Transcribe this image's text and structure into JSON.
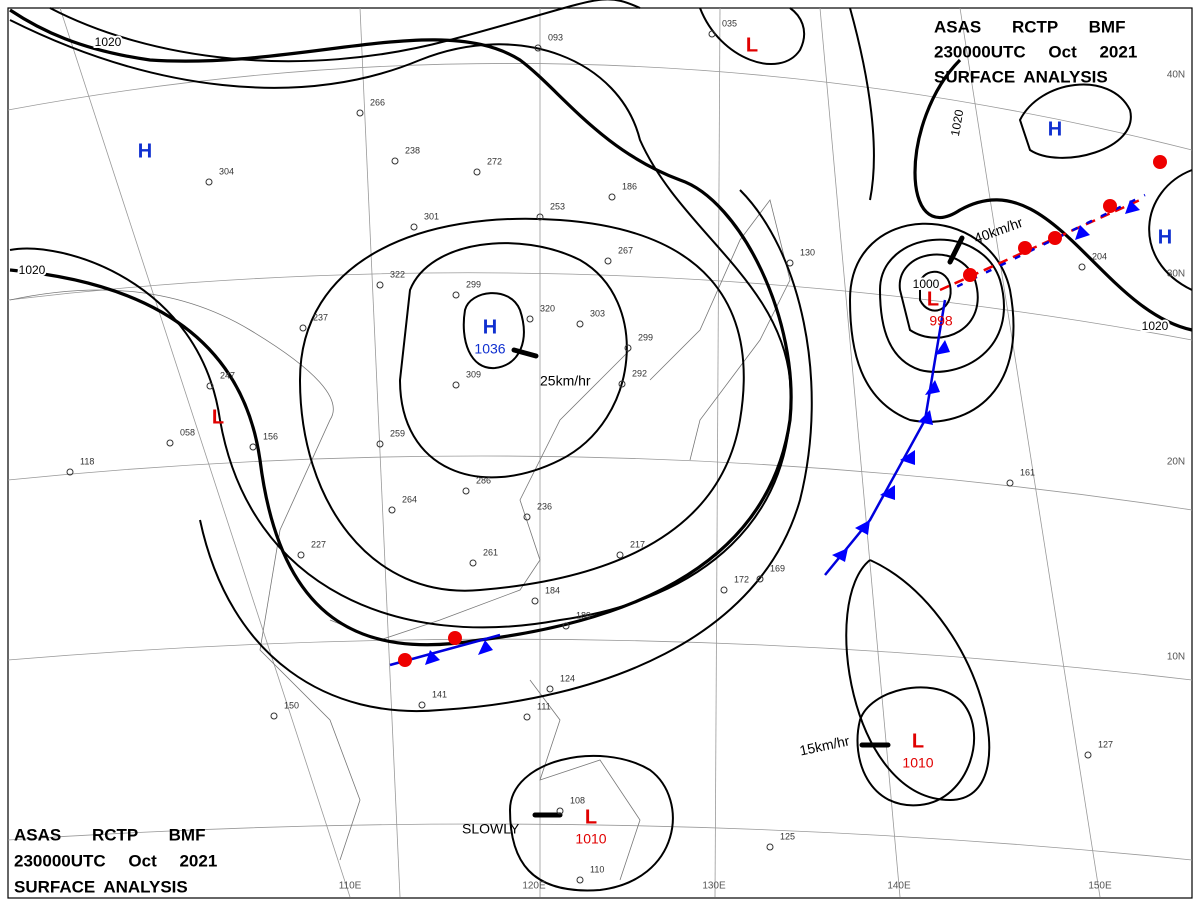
{
  "header_top": {
    "line1": "ASAS RCTP BMF",
    "line2": "230000UTC Oct 2021",
    "line3": "SURFACE ANALYSIS"
  },
  "header_bottom": {
    "line1": "ASAS RCTP BMF",
    "line2": "230000UTC Oct 2021",
    "line3": "SURFACE ANALYSIS"
  },
  "centers": [
    {
      "label": "H"
    },
    {
      "label": "H",
      "pressure": "1036"
    },
    {
      "label": "L"
    },
    {
      "label": "L"
    },
    {
      "label": "L",
      "pressure": "998"
    },
    {
      "label": "L",
      "pressure": "1010"
    },
    {
      "label": "L",
      "pressure": "1010"
    },
    {
      "label": "H"
    },
    {
      "label": "H"
    }
  ],
  "motions": [
    "25km/hr",
    "40km/hr",
    "15km/hr",
    "SLOWLY"
  ],
  "isobar_labels": [
    "1020",
    "1020",
    "1020",
    "1020",
    "1000"
  ],
  "longitudes": [
    "110E",
    "120E",
    "130E",
    "140E",
    "150E"
  ],
  "latitudes": [
    "10N",
    "20N",
    "30N",
    "40N"
  ],
  "stations": [
    "093",
    "035",
    "266",
    "238",
    "272",
    "253",
    "186",
    "267",
    "320",
    "303",
    "299",
    "309",
    "286",
    "261",
    "236",
    "217",
    "172",
    "169",
    "184",
    "189",
    "237",
    "227",
    "264",
    "259",
    "247",
    "156",
    "058",
    "118",
    "301",
    "322",
    "304",
    "110",
    "124",
    "111",
    "108",
    "125",
    "127",
    "161",
    "204",
    "130",
    "141",
    "150",
    "299",
    "292"
  ]
}
